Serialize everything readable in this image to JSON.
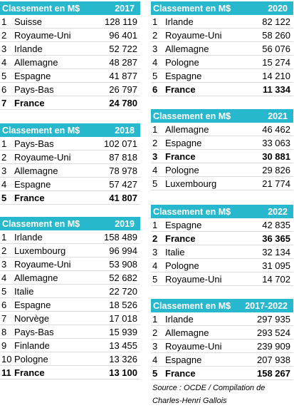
{
  "tables": [
    {
      "title": "Classement en M$",
      "year": "2017",
      "rows": [
        {
          "rank": "1",
          "country": "Suisse",
          "value": "128 119",
          "highlight": false
        },
        {
          "rank": "2",
          "country": "Royaume-Uni",
          "value": "96 401",
          "highlight": false
        },
        {
          "rank": "3",
          "country": "Irlande",
          "value": "52 722",
          "highlight": false
        },
        {
          "rank": "4",
          "country": "Allemagne",
          "value": "48 287",
          "highlight": false
        },
        {
          "rank": "5",
          "country": "Espagne",
          "value": "41 877",
          "highlight": false
        },
        {
          "rank": "6",
          "country": "Pays-Bas",
          "value": "26 797",
          "highlight": false
        },
        {
          "rank": "7",
          "country": "France",
          "value": "24 780",
          "highlight": true
        }
      ]
    },
    {
      "title": "Classement en M$",
      "year": "2018",
      "rows": [
        {
          "rank": "1",
          "country": "Pays-Bas",
          "value": "102 071",
          "highlight": false
        },
        {
          "rank": "2",
          "country": "Royaume-Uni",
          "value": "87 818",
          "highlight": false
        },
        {
          "rank": "3",
          "country": "Allemagne",
          "value": "78 978",
          "highlight": false
        },
        {
          "rank": "4",
          "country": "Espagne",
          "value": "57 427",
          "highlight": false
        },
        {
          "rank": "5",
          "country": "France",
          "value": "41 807",
          "highlight": true
        }
      ]
    },
    {
      "title": "Classement en M$",
      "year": "2019",
      "rows": [
        {
          "rank": "1",
          "country": "Irlande",
          "value": "158 489",
          "highlight": false
        },
        {
          "rank": "2",
          "country": "Luxembourg",
          "value": "96 994",
          "highlight": false
        },
        {
          "rank": "3",
          "country": "Royaume-Uni",
          "value": "53 908",
          "highlight": false
        },
        {
          "rank": "4",
          "country": "Allemagne",
          "value": "52 682",
          "highlight": false
        },
        {
          "rank": "5",
          "country": "Italie",
          "value": "22 720",
          "highlight": false
        },
        {
          "rank": "6",
          "country": "Espagne",
          "value": "18 526",
          "highlight": false
        },
        {
          "rank": "7",
          "country": "Norvège",
          "value": "17 018",
          "highlight": false
        },
        {
          "rank": "8",
          "country": "Pays-Bas",
          "value": "15 939",
          "highlight": false
        },
        {
          "rank": "9",
          "country": "Finlande",
          "value": "13 455",
          "highlight": false
        },
        {
          "rank": "10",
          "country": "Pologne",
          "value": "13 326",
          "highlight": false
        },
        {
          "rank": "11",
          "country": "France",
          "value": "13 100",
          "highlight": true
        }
      ]
    },
    {
      "title": "Classement en M$",
      "year": "2020",
      "rows": [
        {
          "rank": "1",
          "country": "Irlande",
          "value": "82 122",
          "highlight": false
        },
        {
          "rank": "2",
          "country": "Royaume-Uni",
          "value": "58 260",
          "highlight": false
        },
        {
          "rank": "3",
          "country": "Allemagne",
          "value": "56 076",
          "highlight": false
        },
        {
          "rank": "4",
          "country": "Pologne",
          "value": "15 274",
          "highlight": false
        },
        {
          "rank": "5",
          "country": "Espagne",
          "value": "14 210",
          "highlight": false
        },
        {
          "rank": "6",
          "country": "France",
          "value": "11 334",
          "highlight": true
        }
      ]
    },
    {
      "title": "Classement en M$",
      "year": "2021",
      "rows": [
        {
          "rank": "1",
          "country": "Allemagne",
          "value": "46 462",
          "highlight": false
        },
        {
          "rank": "2",
          "country": "Espagne",
          "value": "33 063",
          "highlight": false
        },
        {
          "rank": "3",
          "country": "France",
          "value": "30 881",
          "highlight": true
        },
        {
          "rank": "4",
          "country": "Pologne",
          "value": "29 826",
          "highlight": false
        },
        {
          "rank": "5",
          "country": "Luxembourg",
          "value": "21 774",
          "highlight": false
        }
      ]
    },
    {
      "title": "Classement en M$",
      "year": "2022",
      "rows": [
        {
          "rank": "1",
          "country": "Espagne",
          "value": "42 835",
          "highlight": false
        },
        {
          "rank": "2",
          "country": "France",
          "value": "36 365",
          "highlight": true
        },
        {
          "rank": "3",
          "country": "Italie",
          "value": "32 134",
          "highlight": false
        },
        {
          "rank": "4",
          "country": "Pologne",
          "value": "31 095",
          "highlight": false
        },
        {
          "rank": "5",
          "country": "Royaume-Uni",
          "value": "14 702",
          "highlight": false
        }
      ]
    },
    {
      "title": "Classement en M$",
      "year": "2017-2022",
      "rows": [
        {
          "rank": "1",
          "country": "Irlande",
          "value": "297 935",
          "highlight": false
        },
        {
          "rank": "2",
          "country": "Allemagne",
          "value": "293 524",
          "highlight": false
        },
        {
          "rank": "3",
          "country": "Royaume-Uni",
          "value": "239 909",
          "highlight": false
        },
        {
          "rank": "4",
          "country": "Espagne",
          "value": "207 938",
          "highlight": false
        },
        {
          "rank": "5",
          "country": "France",
          "value": "158 267",
          "highlight": true
        }
      ]
    }
  ],
  "source": {
    "line1": "Source : OCDE / Compilation de",
    "line2": "Charles-Henri Gallois"
  }
}
